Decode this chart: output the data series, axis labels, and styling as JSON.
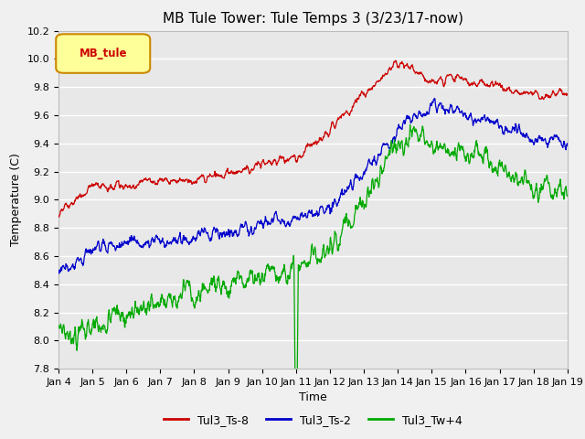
{
  "title": "MB Tule Tower: Tule Temps 3 (3/23/17-now)",
  "xlabel": "Time",
  "ylabel": "Temperature (C)",
  "ylim": [
    7.8,
    10.2
  ],
  "x_tick_labels": [
    "Jan 4",
    "Jan 5",
    "Jan 6",
    "Jan 7",
    "Jan 8",
    "Jan 9",
    "Jan 10",
    "Jan 11",
    "Jan 12",
    "Jan 13",
    "Jan 14",
    "Jan 15",
    "Jan 16",
    "Jan 17",
    "Jan 18",
    "Jan 19"
  ],
  "series_colors": {
    "Tul3_Ts-8": "#cc0000",
    "Tul3_Ts-2": "#0000cc",
    "Tul3_Tw+4": "#00aa00"
  },
  "legend_box_color": "#ffff99",
  "legend_box_edge": "#cc8800",
  "legend_label": "MB_tule",
  "legend_label_color": "#cc0000",
  "plot_area_color": "#e8e8e8",
  "fig_color": "#f0f0f0",
  "grid_color": "#ffffff",
  "title_fontsize": 11,
  "axis_fontsize": 9,
  "tick_fontsize": 8
}
